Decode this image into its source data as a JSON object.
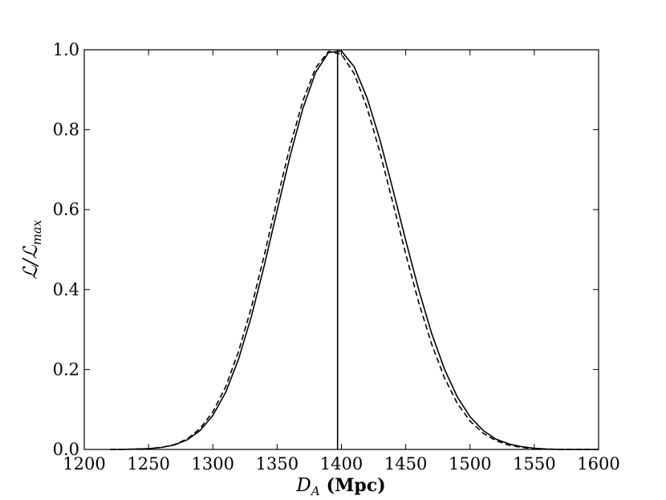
{
  "chart_data": {
    "type": "line",
    "title": "",
    "xlabel": "D_A (Mpc)",
    "xlabel_symbol": "D",
    "xlabel_subscript": "A",
    "xlabel_unit": "(Mpc)",
    "ylabel": "ℒ/ℒmax",
    "ylabel_main": "ℒ/ℒ",
    "ylabel_subscript": "max",
    "xlim": [
      1200,
      1600
    ],
    "ylim": [
      0.0,
      1.0
    ],
    "x_ticks": [
      1200,
      1250,
      1300,
      1350,
      1400,
      1450,
      1500,
      1550,
      1600
    ],
    "y_ticks": [
      0.0,
      0.2,
      0.4,
      0.6,
      0.8,
      1.0
    ],
    "x_tick_labels": [
      "1200",
      "1250",
      "1300",
      "1350",
      "1400",
      "1450",
      "1500",
      "1550",
      "1600"
    ],
    "y_tick_labels": [
      "0.0",
      "0.2",
      "0.4",
      "0.6",
      "0.8",
      "1.0"
    ],
    "grid": false,
    "legend": "none",
    "vline_x": 1397,
    "series": [
      {
        "style": "solid",
        "color": "#000000",
        "x": [
          1220,
          1230,
          1240,
          1250,
          1260,
          1270,
          1280,
          1290,
          1300,
          1310,
          1320,
          1330,
          1340,
          1350,
          1360,
          1370,
          1380,
          1390,
          1400,
          1410,
          1420,
          1430,
          1440,
          1450,
          1460,
          1470,
          1480,
          1490,
          1500,
          1510,
          1520,
          1530,
          1540,
          1550,
          1560,
          1570,
          1580,
          1590,
          1600
        ],
        "values": [
          0.0,
          0.0,
          0.001,
          0.002,
          0.005,
          0.011,
          0.024,
          0.047,
          0.085,
          0.143,
          0.226,
          0.333,
          0.46,
          0.598,
          0.733,
          0.853,
          0.944,
          0.993,
          0.997,
          0.957,
          0.879,
          0.774,
          0.651,
          0.523,
          0.401,
          0.292,
          0.202,
          0.132,
          0.082,
          0.048,
          0.026,
          0.014,
          0.007,
          0.003,
          0.001,
          0.0,
          0.0,
          0.0,
          0.0
        ]
      },
      {
        "style": "dashed",
        "color": "#000000",
        "x": [
          1220,
          1230,
          1240,
          1250,
          1260,
          1270,
          1280,
          1290,
          1300,
          1310,
          1320,
          1330,
          1340,
          1350,
          1360,
          1370,
          1380,
          1390,
          1400,
          1410,
          1420,
          1430,
          1440,
          1450,
          1460,
          1470,
          1480,
          1490,
          1500,
          1510,
          1520,
          1530,
          1540,
          1550,
          1560,
          1570,
          1580,
          1590,
          1600
        ],
        "values": [
          0.0,
          0.0,
          0.001,
          0.002,
          0.005,
          0.012,
          0.026,
          0.052,
          0.094,
          0.157,
          0.245,
          0.356,
          0.486,
          0.625,
          0.758,
          0.872,
          0.955,
          0.996,
          0.989,
          0.94,
          0.854,
          0.743,
          0.617,
          0.489,
          0.369,
          0.265,
          0.18,
          0.116,
          0.071,
          0.041,
          0.022,
          0.011,
          0.005,
          0.002,
          0.001,
          0.0,
          0.0,
          0.0,
          0.0
        ]
      }
    ]
  }
}
